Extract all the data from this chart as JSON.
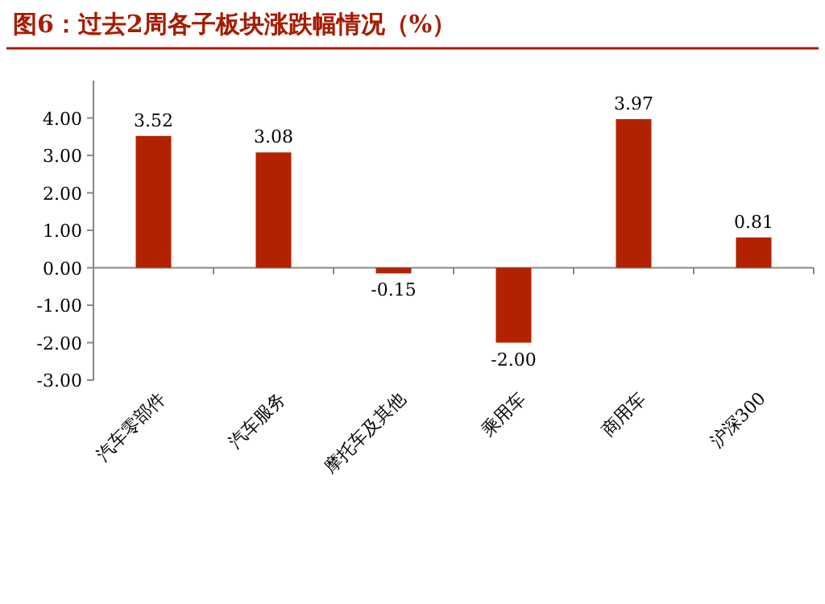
{
  "chart_data": {
    "type": "bar",
    "title": "图6：过去2周各子板块涨跌幅情况（%）",
    "categories": [
      "汽车零部件",
      "汽车服务",
      "摩托车及其他",
      "乘用车",
      "商用车",
      "沪深300"
    ],
    "values": [
      3.52,
      3.08,
      -0.15,
      -2.0,
      3.97,
      0.81
    ],
    "value_labels": [
      "3.52",
      "3.08",
      "-0.15",
      "-2.00",
      "3.97",
      "0.81"
    ],
    "color": "#b22200",
    "ylim": [
      -3,
      5
    ],
    "yticks": [
      {
        "value": -3,
        "label": "-3.00"
      },
      {
        "value": -2,
        "label": "-2.00"
      },
      {
        "value": -1,
        "label": "-1.00"
      },
      {
        "value": 0,
        "label": "0.00"
      },
      {
        "value": 1,
        "label": "1.00"
      },
      {
        "value": 2,
        "label": "2.00"
      },
      {
        "value": 3,
        "label": "3.00"
      },
      {
        "value": 4,
        "label": "4.00"
      }
    ],
    "relative": false
  }
}
